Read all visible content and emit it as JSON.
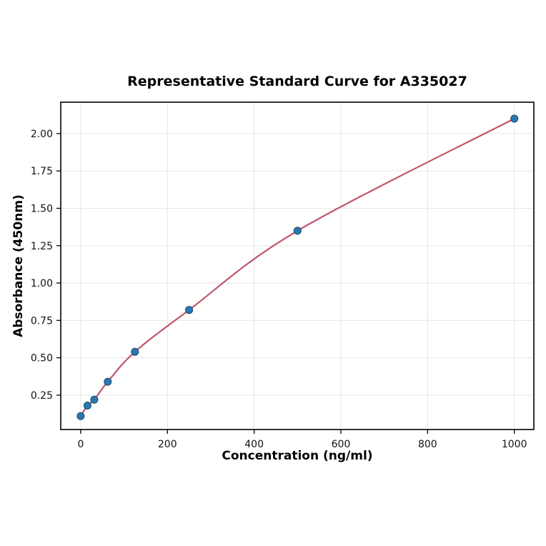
{
  "chart_data": {
    "type": "scatter",
    "title": "Representative Standard Curve for A335027",
    "xlabel": "Concentration (ng/ml)",
    "ylabel": "Absorbance (450nm)",
    "x": [
      0,
      15.6,
      31.25,
      62.5,
      125,
      250,
      500,
      1000
    ],
    "y": [
      0.11,
      0.18,
      0.22,
      0.34,
      0.54,
      0.82,
      1.35,
      2.1
    ],
    "fit_curve": true,
    "x_ticks": {
      "values": [
        0,
        200,
        400,
        600,
        800,
        1000
      ],
      "labels": [
        "0",
        "200",
        "400",
        "600",
        "800",
        "1000"
      ]
    },
    "y_ticks": {
      "values": [
        0.25,
        0.5,
        0.75,
        1.0,
        1.25,
        1.5,
        1.75,
        2.0
      ],
      "labels": [
        "0.25",
        "0.50",
        "0.75",
        "1.00",
        "1.25",
        "1.50",
        "1.75",
        "2.00"
      ]
    },
    "xlim": [
      -46,
      1045
    ],
    "ylim": [
      0.02,
      2.21
    ],
    "grid": true,
    "legend": "none",
    "colors": {
      "point_fill": "#2878b5",
      "point_edge": "#1b4965",
      "curve": "#c0566b",
      "grid": "#e5e5e5",
      "axis": "#000000",
      "background": "#ffffff"
    }
  }
}
